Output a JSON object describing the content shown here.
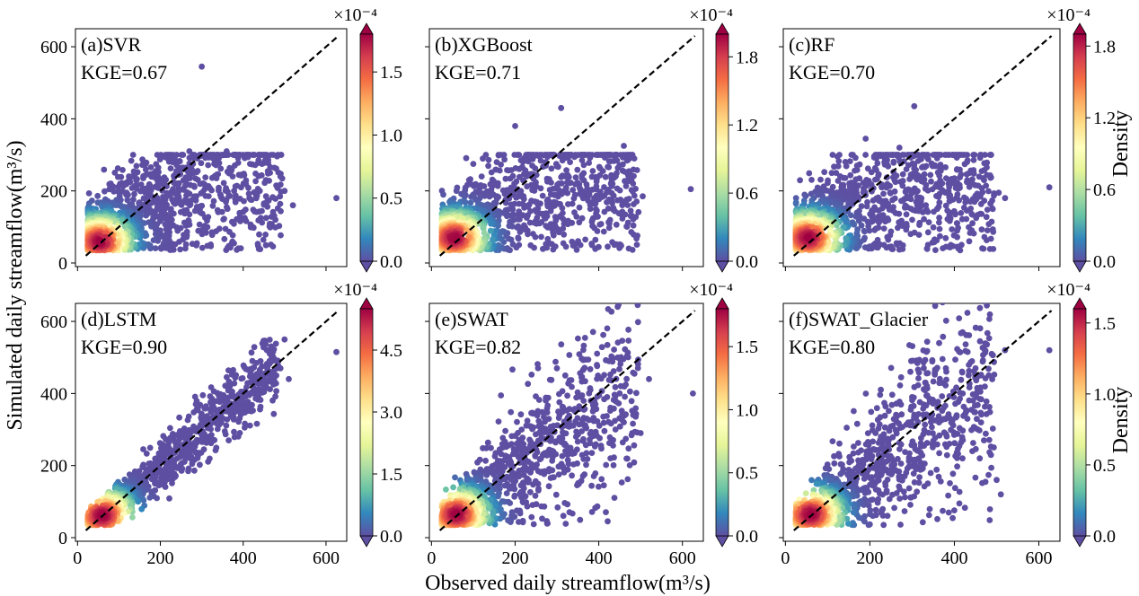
{
  "figure": {
    "xlabel": "Observed daily streamflow(m³/s)",
    "ylabel": "Simulated daily streamflow(m³/s)",
    "colorbar_label": "Density",
    "colorbar_exponent": "×10⁻⁴",
    "colormap": [
      "#5e4fa2",
      "#3288bd",
      "#66c2a5",
      "#abdda4",
      "#e6f598",
      "#ffffbf",
      "#fee08b",
      "#fdae61",
      "#f46d43",
      "#d53e4f",
      "#9e0142"
    ],
    "reference_line_color": "#000000"
  },
  "chart_data": [
    {
      "type": "scatter",
      "title": "(a)SVR",
      "metric": "KGE=0.67",
      "xlim": [
        -5,
        650
      ],
      "ylim": [
        -10,
        650
      ],
      "xticks": [
        0,
        200,
        400,
        600
      ],
      "yticks": [
        0,
        200,
        400,
        600
      ],
      "colorbar": {
        "ticks": [
          "0.0",
          "0.5",
          "1.0",
          "1.5"
        ],
        "tick_values": [
          0,
          0.5,
          1.0,
          1.5
        ],
        "max": 1.8
      },
      "reference_line": {
        "x": [
          20,
          630
        ],
        "y": [
          20,
          630
        ]
      },
      "shape": "broad",
      "peak": [
        55,
        60
      ],
      "outliers": [
        [
          300,
          545
        ],
        [
          625,
          180
        ],
        [
          520,
          160
        ],
        [
          500,
          200
        ],
        [
          490,
          240
        ],
        [
          480,
          215
        ],
        [
          455,
          230
        ],
        [
          440,
          200
        ],
        [
          270,
          310
        ],
        [
          360,
          310
        ],
        [
          330,
          275
        ],
        [
          395,
          210
        ],
        [
          415,
          180
        ]
      ]
    },
    {
      "type": "scatter",
      "title": "(b)XGBoost",
      "metric": "KGE=0.71",
      "xlim": [
        -5,
        650
      ],
      "ylim": [
        -10,
        650
      ],
      "xticks": [
        0,
        200,
        400,
        600
      ],
      "yticks": [
        0,
        200,
        400,
        600
      ],
      "colorbar": {
        "ticks": [
          "0.0",
          "0.6",
          "1.2",
          "1.8"
        ],
        "tick_values": [
          0,
          0.6,
          1.2,
          1.8
        ],
        "max": 2.0
      },
      "reference_line": {
        "x": [
          20,
          630
        ],
        "y": [
          20,
          630
        ]
      },
      "shape": "broad",
      "peak": [
        55,
        70
      ],
      "outliers": [
        [
          310,
          430
        ],
        [
          620,
          205
        ],
        [
          460,
          325
        ],
        [
          505,
          185
        ],
        [
          470,
          230
        ],
        [
          410,
          255
        ],
        [
          200,
          380
        ],
        [
          120,
          240
        ],
        [
          130,
          300
        ],
        [
          100,
          275
        ],
        [
          90,
          230
        ],
        [
          360,
          285
        ]
      ]
    },
    {
      "type": "scatter",
      "title": "(c)RF",
      "metric": "KGE=0.70",
      "xlim": [
        -5,
        650
      ],
      "ylim": [
        -10,
        650
      ],
      "xticks": [
        0,
        200,
        400,
        600
      ],
      "yticks": [
        0,
        200,
        400,
        600
      ],
      "colorbar": {
        "ticks": [
          "0.0",
          "0.6",
          "1.2",
          "1.8"
        ],
        "tick_values": [
          0,
          0.6,
          1.2,
          1.8
        ],
        "max": 1.9
      },
      "reference_line": {
        "x": [
          20,
          630
        ],
        "y": [
          20,
          630
        ]
      },
      "shape": "broad",
      "peak": [
        55,
        70
      ],
      "outliers": [
        [
          305,
          435
        ],
        [
          625,
          210
        ],
        [
          520,
          180
        ],
        [
          505,
          195
        ],
        [
          465,
          255
        ],
        [
          430,
          280
        ],
        [
          190,
          345
        ],
        [
          360,
          300
        ],
        [
          400,
          235
        ],
        [
          120,
          250
        ],
        [
          270,
          320
        ]
      ]
    },
    {
      "type": "scatter",
      "title": "(d)LSTM",
      "metric": "KGE=0.90",
      "xlim": [
        -5,
        650
      ],
      "ylim": [
        -10,
        650
      ],
      "xticks": [
        0,
        200,
        400,
        600
      ],
      "yticks": [
        0,
        200,
        400,
        600
      ],
      "colorbar": {
        "ticks": [
          "0.0",
          "1.5",
          "3.0",
          "4.5"
        ],
        "tick_values": [
          0,
          1.5,
          3.0,
          4.5
        ],
        "max": 5.5
      },
      "reference_line": {
        "x": [
          20,
          630
        ],
        "y": [
          20,
          630
        ]
      },
      "shape": "tight",
      "peak": [
        60,
        62
      ],
      "outliers": [
        [
          625,
          515
        ],
        [
          500,
          550
        ],
        [
          480,
          450
        ],
        [
          510,
          440
        ],
        [
          490,
          470
        ],
        [
          450,
          440
        ],
        [
          430,
          400
        ]
      ]
    },
    {
      "type": "scatter",
      "title": "(e)SWAT",
      "metric": "KGE=0.82",
      "xlim": [
        -5,
        650
      ],
      "ylim": [
        -10,
        650
      ],
      "xticks": [
        0,
        200,
        400,
        600
      ],
      "yticks": [
        0,
        200,
        400,
        600
      ],
      "colorbar": {
        "ticks": [
          "0.0",
          "0.5",
          "1.0",
          "1.5"
        ],
        "tick_values": [
          0,
          0.5,
          1.0,
          1.5
        ],
        "max": 1.8
      },
      "reference_line": {
        "x": [
          20,
          630
        ],
        "y": [
          20,
          630
        ]
      },
      "shape": "medium",
      "peak": [
        60,
        65
      ],
      "outliers": [
        [
          625,
          400
        ],
        [
          520,
          440
        ],
        [
          500,
          290
        ],
        [
          480,
          290
        ],
        [
          460,
          320
        ],
        [
          420,
          390
        ],
        [
          300,
          470
        ],
        [
          320,
          450
        ],
        [
          380,
          410
        ],
        [
          440,
          300
        ]
      ]
    },
    {
      "type": "scatter",
      "title": "(f)SWAT_Glacier",
      "metric": "KGE=0.80",
      "xlim": [
        -5,
        650
      ],
      "ylim": [
        -10,
        650
      ],
      "xticks": [
        0,
        200,
        400,
        600
      ],
      "yticks": [
        0,
        200,
        400,
        600
      ],
      "colorbar": {
        "ticks": [
          "0.0",
          "0.5",
          "1.0",
          "1.5"
        ],
        "tick_values": [
          0,
          0.5,
          1.0,
          1.5
        ],
        "max": 1.6
      },
      "reference_line": {
        "x": [
          20,
          630
        ],
        "y": [
          20,
          630
        ]
      },
      "shape": "medium",
      "peak": [
        60,
        65
      ],
      "outliers": [
        [
          625,
          520
        ],
        [
          520,
          520
        ],
        [
          510,
          120
        ],
        [
          500,
          160
        ],
        [
          470,
          270
        ],
        [
          450,
          470
        ],
        [
          420,
          400
        ],
        [
          380,
          470
        ],
        [
          360,
          360
        ],
        [
          460,
          220
        ],
        [
          300,
          390
        ]
      ]
    }
  ]
}
